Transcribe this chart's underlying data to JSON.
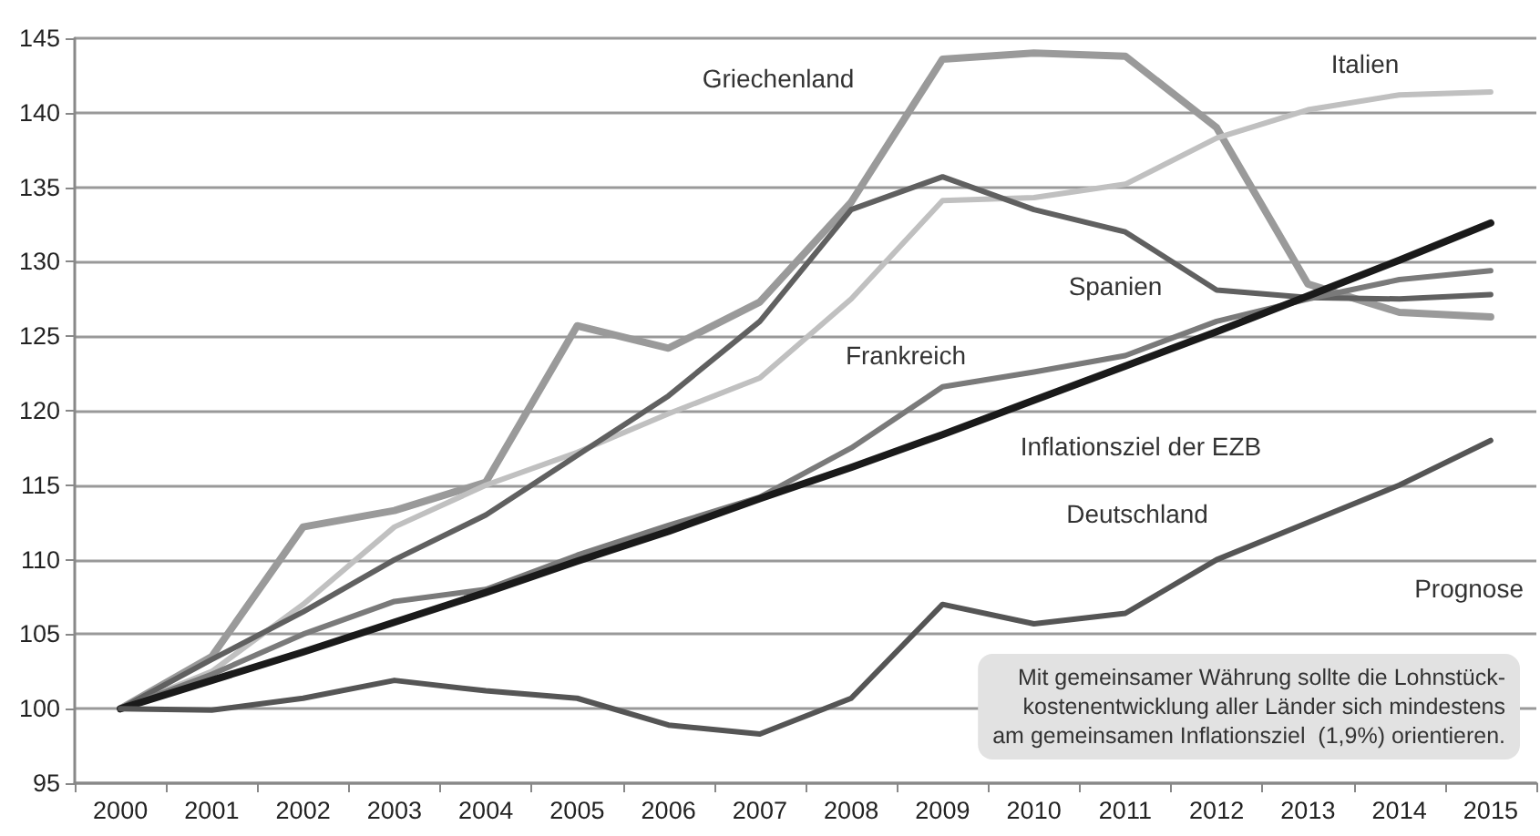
{
  "chart_data": {
    "type": "line",
    "categories": [
      "2000",
      "2001",
      "2002",
      "2003",
      "2004",
      "2005",
      "2006",
      "2007",
      "2008",
      "2009",
      "2010",
      "2011",
      "2012",
      "2013",
      "2014",
      "2015"
    ],
    "series": [
      {
        "name": "Griechenland",
        "color": "#9a9a9a",
        "values": [
          100,
          103.5,
          112.2,
          113.3,
          115.2,
          125.7,
          124.2,
          127.3,
          134,
          143.6,
          144,
          143.8,
          139,
          128.5,
          126.6,
          126.3
        ]
      },
      {
        "name": "Italien",
        "color": "#c0c0c0",
        "values": [
          100,
          102.5,
          107,
          112.2,
          115,
          117.2,
          119.8,
          122.2,
          127.5,
          134.1,
          134.3,
          135.2,
          138.3,
          140.2,
          141.2,
          141.4
        ]
      },
      {
        "name": "Spanien",
        "color": "#606060",
        "values": [
          100,
          103.3,
          106.5,
          110,
          113,
          117,
          121,
          126,
          133.5,
          135.7,
          133.5,
          132,
          128.1,
          127.6,
          127.5,
          127.8
        ]
      },
      {
        "name": "Frankreich",
        "color": "#7a7a7a",
        "values": [
          100,
          102.3,
          105,
          107.2,
          108,
          110.3,
          112.3,
          114.2,
          117.5,
          121.6,
          122.6,
          123.7,
          126,
          127.5,
          128.8,
          129.4
        ]
      },
      {
        "name": "Inflationsziel der EZB",
        "color": "#1a1a1a",
        "values": [
          100,
          101.9,
          103.8,
          105.8,
          107.8,
          109.9,
          111.9,
          114.1,
          116.2,
          118.4,
          120.7,
          123,
          125.3,
          127.7,
          130.1,
          132.6
        ]
      },
      {
        "name": "Deutschland",
        "color": "#555555",
        "values": [
          100,
          99.9,
          100.7,
          101.9,
          101.2,
          100.7,
          98.9,
          98.3,
          100.7,
          107,
          105.7,
          106.4,
          110,
          112.5,
          115,
          118
        ]
      }
    ],
    "ylim": [
      95,
      145
    ],
    "yticks": [
      95,
      100,
      105,
      110,
      115,
      120,
      125,
      130,
      135,
      140,
      145
    ],
    "grid": "y",
    "legend": false,
    "marker": "none",
    "line_style": "solid",
    "annotations": [
      "Prognose",
      "Mit gemeinsamer Währung sollte die Lohnstück-\nkostenentwicklung aller Länder sich mindestens\nam gemeinsamen Inflationsziel  (1,9%) orientieren."
    ]
  }
}
